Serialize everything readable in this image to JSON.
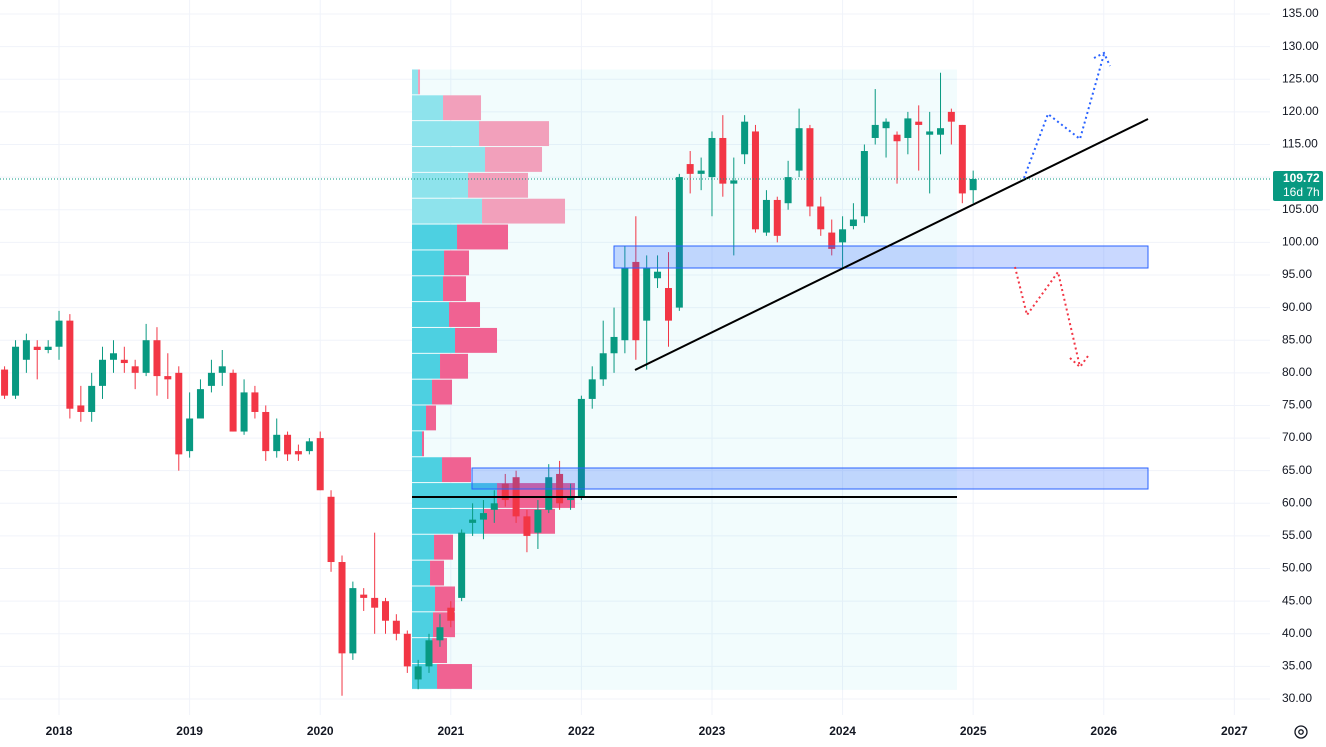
{
  "chart_data": {
    "type": "candlestick",
    "up_color": "#089981",
    "down_color": "#f23645",
    "grid": true,
    "x": [
      2017.583,
      2017.667,
      2017.75,
      2017.833,
      2017.917,
      2018.0,
      2018.083,
      2018.167,
      2018.25,
      2018.333,
      2018.417,
      2018.5,
      2018.583,
      2018.667,
      2018.75,
      2018.833,
      2018.917,
      2019.0,
      2019.083,
      2019.167,
      2019.25,
      2019.333,
      2019.417,
      2019.5,
      2019.583,
      2019.667,
      2019.75,
      2019.833,
      2019.917,
      2020.0,
      2020.083,
      2020.167,
      2020.25,
      2020.333,
      2020.417,
      2020.5,
      2020.583,
      2020.667,
      2020.75,
      2020.833,
      2020.917,
      2021.0,
      2021.083,
      2021.167,
      2021.25,
      2021.333,
      2021.417,
      2021.5,
      2021.583,
      2021.667,
      2021.75,
      2021.833,
      2021.917,
      2022.0,
      2022.083,
      2022.167,
      2022.25,
      2022.333,
      2022.417,
      2022.5,
      2022.583,
      2022.667,
      2022.75,
      2022.833,
      2022.917,
      2023.0,
      2023.083,
      2023.167,
      2023.25,
      2023.333,
      2023.417,
      2023.5,
      2023.583,
      2023.667,
      2023.75,
      2023.833,
      2023.917,
      2024.0,
      2024.083,
      2024.167,
      2024.25,
      2024.333,
      2024.417,
      2024.5,
      2024.583,
      2024.667,
      2024.75,
      2024.833,
      2024.917,
      2025.0
    ],
    "open": [
      80.5,
      76.5,
      82,
      84,
      83.5,
      84,
      88,
      75,
      74,
      78,
      82,
      82,
      81,
      80,
      85,
      79.5,
      80,
      68,
      73,
      78,
      80,
      80,
      71,
      77,
      74,
      68,
      70.5,
      68,
      68,
      70,
      61,
      51,
      37,
      46,
      45.5,
      45,
      42,
      40,
      33,
      35,
      39,
      44,
      45.5,
      57,
      57.5,
      59,
      63,
      64,
      58,
      55.5,
      59,
      64.5,
      60.5,
      61,
      76,
      79,
      83,
      85,
      97,
      88,
      94.5,
      93,
      90,
      112,
      110.5,
      110,
      116,
      109,
      113.5,
      117,
      101.5,
      106.5,
      106,
      111,
      117.5,
      105.5,
      101.5,
      100,
      102.5,
      104,
      116,
      117.5,
      116.5,
      116,
      118.5,
      116.5,
      116.5,
      120,
      118,
      108
    ],
    "high": [
      81,
      85,
      86,
      85,
      85,
      89.5,
      89,
      78,
      80,
      84,
      85,
      84,
      82,
      87.5,
      87,
      83,
      81,
      77,
      79,
      82,
      83.5,
      80.5,
      79,
      78,
      75,
      73,
      71,
      69,
      70,
      71,
      62,
      52,
      48,
      47,
      55.5,
      45.5,
      43,
      40.5,
      36,
      40,
      43,
      45,
      56,
      60,
      60.5,
      62,
      64.5,
      65,
      59,
      60.5,
      66,
      66.5,
      63,
      76.5,
      81,
      88,
      90,
      99.5,
      104,
      98,
      98,
      98.5,
      110.5,
      114,
      113,
      117,
      119.5,
      113,
      119.5,
      118,
      108,
      107,
      112.5,
      120.5,
      118,
      107,
      103.5,
      104,
      106,
      115,
      123.5,
      119,
      117,
      120,
      121,
      120,
      126,
      120.5,
      118,
      111
    ],
    "low": [
      76,
      76,
      80,
      79,
      83,
      82,
      73,
      72.5,
      72.5,
      76,
      80,
      80,
      77.5,
      79.5,
      76.5,
      76,
      65,
      67,
      73,
      77,
      78,
      71,
      70.5,
      73,
      66.5,
      67,
      66.5,
      66.5,
      67.5,
      62,
      49.5,
      30.5,
      36,
      43.5,
      40,
      40,
      39,
      34,
      31.5,
      34,
      38,
      41,
      45,
      55,
      54.5,
      57,
      59.5,
      57,
      52.5,
      53,
      58.5,
      59,
      59,
      60.5,
      74.5,
      78,
      80,
      83,
      82,
      80.5,
      93,
      84,
      89.5,
      107.5,
      108,
      104,
      107,
      98,
      112,
      101.5,
      101,
      100,
      105,
      110,
      104,
      101,
      98,
      96,
      102,
      103,
      115,
      113,
      109,
      113.5,
      111,
      107.5,
      113.5,
      115,
      106,
      106
    ],
    "close": [
      76.5,
      84,
      85,
      83.5,
      84,
      88,
      74.5,
      74,
      78,
      82,
      83,
      81.5,
      80,
      85,
      79.5,
      79,
      67.5,
      73,
      77.5,
      80,
      81,
      71,
      77,
      74,
      68,
      70.5,
      67.5,
      67.5,
      69.5,
      62,
      51,
      37,
      47,
      45.5,
      44,
      42,
      40,
      35,
      35,
      39,
      41,
      42,
      55.5,
      57.5,
      58.5,
      60,
      60.5,
      58,
      55,
      59,
      64,
      60,
      61,
      76,
      79,
      83,
      85.5,
      96,
      85,
      96,
      95.5,
      88,
      110,
      110.5,
      111,
      116,
      109,
      109.5,
      118.5,
      102,
      106.5,
      101,
      110,
      117.5,
      105.5,
      102,
      99,
      102,
      103.5,
      114,
      118,
      118.5,
      115.5,
      119,
      118,
      117,
      117.5,
      118.5,
      107.5,
      109.72
    ],
    "countdown": "16d 7h",
    "xlim": [
      2017.548,
      2027.273
    ],
    "ylim": [
      27.55,
      137.15
    ],
    "xticks": [
      2018,
      2019,
      2020,
      2021,
      2022,
      2023,
      2024,
      2025,
      2026,
      2027
    ],
    "yticks": [
      {
        "value": 30,
        "label": "30.00"
      },
      {
        "value": 35,
        "label": "35.00"
      },
      {
        "value": 40,
        "label": "40.00"
      },
      {
        "value": 45,
        "label": "45.00"
      },
      {
        "value": 50,
        "label": "50.00"
      },
      {
        "value": 55,
        "label": "55.00"
      },
      {
        "value": 60,
        "label": "60.00"
      },
      {
        "value": 65,
        "label": "65.00"
      },
      {
        "value": 70,
        "label": "70.00"
      },
      {
        "value": 75,
        "label": "75.00"
      },
      {
        "value": 80,
        "label": "80.00"
      },
      {
        "value": 85,
        "label": "85.00"
      },
      {
        "value": 90,
        "label": "90.00"
      },
      {
        "value": 95,
        "label": "95.00"
      },
      {
        "value": 100,
        "label": "100.00"
      },
      {
        "value": 105,
        "label": "105.00"
      },
      {
        "value": 110,
        "label": "110.00"
      },
      {
        "value": 115,
        "label": "115.00"
      },
      {
        "value": 120,
        "label": "120.00"
      },
      {
        "value": 125,
        "label": "125.00"
      },
      {
        "value": 130,
        "label": "130.00"
      },
      {
        "value": 135,
        "label": "135.00"
      }
    ],
    "volume_profile": {
      "x_range": [
        2020.703,
        2024.876
      ],
      "value_area": [
        31.4,
        102.73
      ],
      "bins": [
        31.4,
        35.36,
        39.33,
        43.29,
        47.25,
        51.21,
        55.18,
        59.14,
        63.1,
        67.06,
        71.03,
        74.99,
        78.95,
        82.91,
        86.88,
        90.84,
        94.8,
        98.76,
        102.73,
        106.69,
        110.65,
        114.61,
        118.58,
        122.54,
        126.5
      ],
      "buy": [
        25,
        20,
        21,
        23,
        18,
        22,
        71,
        85,
        30,
        10,
        14,
        20,
        28,
        43,
        37,
        31,
        32,
        45,
        70,
        56,
        73,
        67,
        31,
        6
      ],
      "sell": [
        35,
        15,
        22,
        20,
        14,
        19,
        72,
        78,
        29,
        2,
        10,
        20,
        28,
        42,
        31,
        23,
        25,
        51,
        83,
        60,
        57,
        70,
        38,
        2
      ],
      "buy_color": "#4dd0e1",
      "sell_color": "#f06292",
      "buy_color_outside": "#8ee3ec",
      "sell_color_outside": "#f2a0bb"
    }
  }
}
